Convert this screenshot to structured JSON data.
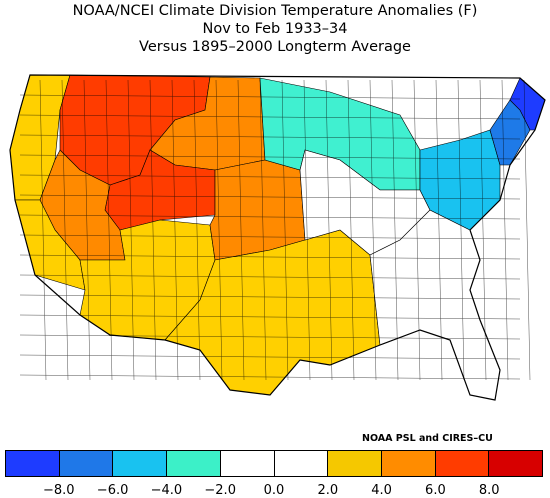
{
  "title": {
    "line1": "NOAA/NCEI Climate Division Temperature Anomalies (F)",
    "line2": "Nov to Feb 1933–34",
    "line3": "Versus 1895–2000 Longterm Average"
  },
  "credit": "NOAA PSL and CIRES–CU",
  "legend": {
    "bins": [
      "#1e3cff",
      "#1f78e8",
      "#19c2f0",
      "#3cf0c8",
      "#ffffff",
      "#ffffff",
      "#f5c800",
      "#ff8c00",
      "#ff3c00",
      "#d70000"
    ],
    "ticks": [
      "−8.0",
      "−6.0",
      "−4.0",
      "−2.0",
      "0.0",
      "2.0",
      "4.0",
      "6.0",
      "8.0"
    ]
  },
  "map_colors": {
    "warm_light": "#ffd000",
    "warm_mid": "#ff8a00",
    "warm_hot": "#ff3c00",
    "neutral": "#ffffff",
    "cool_light": "#40f0d0",
    "cool_mid": "#19c2f0",
    "cool_strong": "#1e7ae8",
    "cool_extreme": "#1e3cff"
  },
  "map_regions": [
    {
      "name": "pacific-northwest",
      "color": "warm_light"
    },
    {
      "name": "northern-rockies",
      "color": "warm_hot"
    },
    {
      "name": "northern-plains-west",
      "color": "warm_mid"
    },
    {
      "name": "central-rockies",
      "color": "warm_hot"
    },
    {
      "name": "great-basin",
      "color": "warm_mid"
    },
    {
      "name": "california",
      "color": "warm_light"
    },
    {
      "name": "southwest",
      "color": "warm_light"
    },
    {
      "name": "central-plains",
      "color": "warm_mid"
    },
    {
      "name": "south-central",
      "color": "warm_light"
    },
    {
      "name": "upper-midwest",
      "color": "cool_light"
    },
    {
      "name": "ohio-valley",
      "color": "neutral"
    },
    {
      "name": "southeast",
      "color": "neutral"
    },
    {
      "name": "northeast",
      "color": "cool_mid"
    },
    {
      "name": "new-england",
      "color": "cool_strong"
    },
    {
      "name": "maine",
      "color": "cool_extreme"
    }
  ]
}
